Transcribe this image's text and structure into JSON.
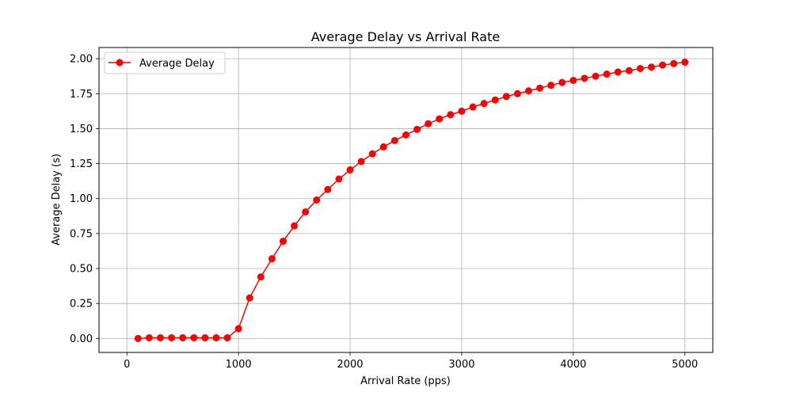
{
  "chart_data": {
    "type": "line",
    "title": "Average Delay vs Arrival Rate",
    "xlabel": "Arrival Rate (pps)",
    "ylabel": "Average Delay (s)",
    "xlim": [
      -250,
      5250
    ],
    "ylim": [
      -0.1,
      2.08
    ],
    "xticks": [
      0,
      1000,
      2000,
      3000,
      4000,
      5000
    ],
    "xtick_labels": [
      "0",
      "1000",
      "2000",
      "3000",
      "4000",
      "5000"
    ],
    "yticks": [
      0,
      0.25,
      0.5,
      0.75,
      1.0,
      1.25,
      1.5,
      1.75,
      2.0
    ],
    "ytick_labels": [
      "0.00",
      "0.25",
      "0.50",
      "0.75",
      "1.00",
      "1.25",
      "1.50",
      "1.75",
      "2.00"
    ],
    "grid": true,
    "legend_position": "top-left",
    "series": [
      {
        "name": "Average Delay",
        "color": "#ff0000",
        "marker": "circle",
        "x": [
          100,
          200,
          300,
          400,
          500,
          600,
          700,
          800,
          900,
          1000,
          1100,
          1200,
          1300,
          1400,
          1500,
          1600,
          1700,
          1800,
          1900,
          2000,
          2100,
          2200,
          2300,
          2400,
          2500,
          2600,
          2700,
          2800,
          2900,
          3000,
          3100,
          3200,
          3300,
          3400,
          3500,
          3600,
          3700,
          3800,
          3900,
          4000,
          4100,
          4200,
          4300,
          4400,
          4500,
          4600,
          4700,
          4800,
          4900,
          5000
        ],
        "y": [
          0.0,
          0.005,
          0.005,
          0.005,
          0.005,
          0.005,
          0.005,
          0.005,
          0.005,
          0.07,
          0.29,
          0.44,
          0.57,
          0.695,
          0.805,
          0.905,
          0.99,
          1.065,
          1.14,
          1.205,
          1.265,
          1.32,
          1.37,
          1.415,
          1.455,
          1.495,
          1.535,
          1.57,
          1.6,
          1.625,
          1.655,
          1.68,
          1.705,
          1.73,
          1.75,
          1.77,
          1.79,
          1.81,
          1.83,
          1.845,
          1.86,
          1.875,
          1.89,
          1.905,
          1.915,
          1.93,
          1.94,
          1.955,
          1.965,
          1.975
        ]
      }
    ]
  }
}
